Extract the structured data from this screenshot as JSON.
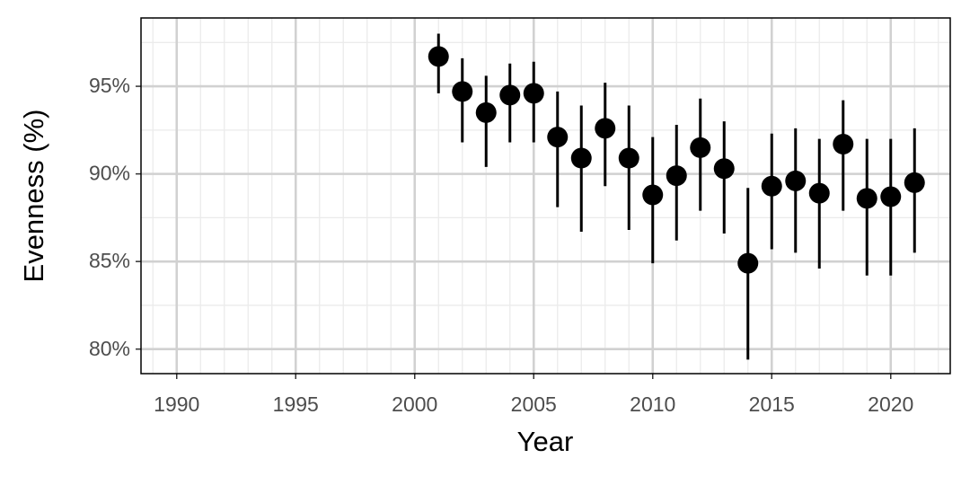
{
  "chart_data": {
    "type": "pointrange",
    "x_label": "Year",
    "y_label": "Evenness (%)",
    "xlim": [
      1988.5,
      2022.5
    ],
    "xticks": [
      1990,
      1995,
      2000,
      2005,
      2010,
      2015,
      2020
    ],
    "x_minor_ticks": [
      1989,
      1991,
      1992,
      1993,
      1994,
      1996,
      1997,
      1998,
      1999,
      2001,
      2002,
      2003,
      2004,
      2006,
      2007,
      2008,
      2009,
      2011,
      2012,
      2013,
      2014,
      2016,
      2017,
      2018,
      2019,
      2021,
      2022
    ],
    "ylim": [
      78.6,
      98.9
    ],
    "yticks": [
      {
        "value": 80,
        "label": "80%"
      },
      {
        "value": 85,
        "label": "85%"
      },
      {
        "value": 90,
        "label": "90%"
      },
      {
        "value": 95,
        "label": "95%"
      }
    ],
    "y_minor_ticks": [
      82.5,
      87.5,
      92.5,
      97.5
    ],
    "grid": true,
    "series": [
      {
        "color": "#000000",
        "x": [
          2001,
          2002,
          2003,
          2004,
          2005,
          2006,
          2007,
          2008,
          2009,
          2010,
          2011,
          2012,
          2013,
          2014,
          2015,
          2016,
          2017,
          2018,
          2019,
          2020,
          2021
        ],
        "values": [
          96.7,
          94.7,
          93.5,
          94.5,
          94.6,
          92.1,
          90.9,
          92.6,
          90.9,
          88.8,
          89.9,
          91.5,
          90.3,
          84.9,
          89.3,
          89.6,
          88.9,
          91.7,
          88.6,
          88.7,
          89.5
        ],
        "lower": [
          94.6,
          91.8,
          90.4,
          91.8,
          91.8,
          88.1,
          86.7,
          89.3,
          86.8,
          84.9,
          86.2,
          87.9,
          86.6,
          79.4,
          85.7,
          85.5,
          84.6,
          87.9,
          84.2,
          84.2,
          85.5
        ],
        "upper": [
          98.0,
          96.6,
          95.6,
          96.3,
          96.4,
          94.7,
          93.9,
          95.2,
          93.9,
          92.1,
          92.8,
          94.3,
          93.0,
          89.2,
          92.3,
          92.6,
          92.0,
          94.2,
          92.0,
          92.0,
          92.6
        ]
      }
    ]
  }
}
